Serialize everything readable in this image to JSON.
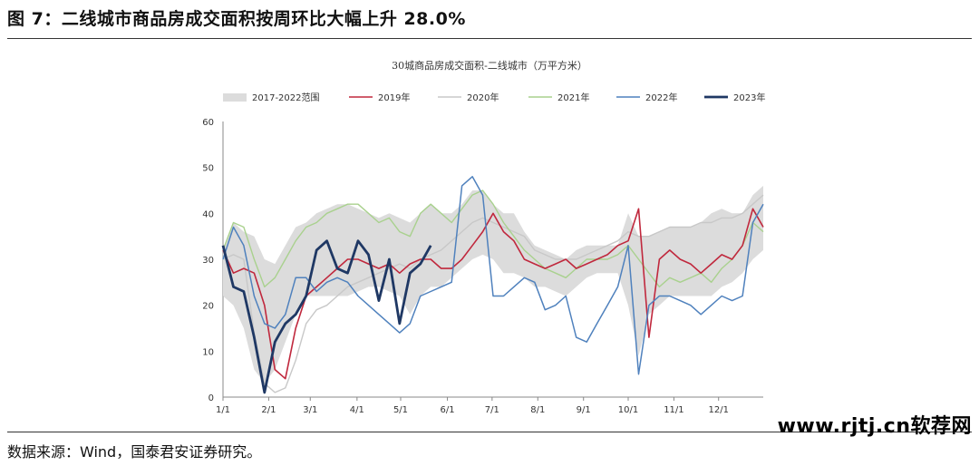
{
  "figure": {
    "title": "图 7：二线城市商品房成交面积按周环比大幅上升 28.0%",
    "source": "数据来源：Wind，国泰君安证券研究。",
    "watermark": "www.rjtj.cn软荐网"
  },
  "colors": {
    "range": "#dcdcdc",
    "s2019": "#c0283d",
    "s2020": "#c8c8c8",
    "s2021": "#a9d18e",
    "s2022": "#4f81bd",
    "s2023": "#1f3864"
  },
  "chart_data": {
    "type": "line",
    "title": "30城商品房成交面积-二线城市（万平方米）",
    "xlabel": "",
    "ylabel": "",
    "ylim": [
      0,
      60
    ],
    "yticks": [
      0,
      10,
      20,
      30,
      40,
      50,
      60
    ],
    "xlim": [
      0,
      52
    ],
    "xticks": [
      {
        "label": "1/1",
        "week": 0
      },
      {
        "label": "2/1",
        "week": 4.4
      },
      {
        "label": "3/1",
        "week": 8.4
      },
      {
        "label": "4/1",
        "week": 12.9
      },
      {
        "label": "5/1",
        "week": 17.1
      },
      {
        "label": "6/1",
        "week": 21.6
      },
      {
        "label": "7/1",
        "week": 25.9
      },
      {
        "label": "8/1",
        "week": 30.3
      },
      {
        "label": "9/1",
        "week": 34.7
      },
      {
        "label": "10/1",
        "week": 39.0
      },
      {
        "label": "11/1",
        "week": 43.4
      },
      {
        "label": "12/1",
        "week": 47.7
      }
    ],
    "legend": [
      "2017-2022范围",
      "2019年",
      "2020年",
      "2021年",
      "2022年",
      "2023年"
    ],
    "range_band": {
      "name": "2017-2022范围",
      "x": [
        0,
        1,
        2,
        3,
        4,
        5,
        6,
        7,
        8,
        9,
        10,
        11,
        12,
        13,
        14,
        15,
        16,
        17,
        18,
        19,
        20,
        21,
        22,
        23,
        24,
        25,
        26,
        27,
        28,
        29,
        30,
        31,
        32,
        33,
        34,
        35,
        36,
        37,
        38,
        39,
        40,
        41,
        42,
        43,
        44,
        45,
        46,
        47,
        48,
        49,
        50,
        51,
        52
      ],
      "upper": [
        32,
        38,
        36,
        35,
        30,
        29,
        33,
        37,
        38,
        40,
        41,
        42,
        42,
        41,
        40,
        39,
        40,
        39,
        38,
        40,
        42,
        40,
        40,
        42,
        45,
        45,
        42,
        40,
        40,
        36,
        33,
        32,
        31,
        30,
        32,
        33,
        33,
        33,
        33,
        40,
        35,
        35,
        36,
        37,
        37,
        37,
        38,
        40,
        41,
        40,
        40,
        44,
        46
      ],
      "lower": [
        22,
        20,
        15,
        6,
        3,
        6,
        12,
        18,
        22,
        22,
        22,
        22,
        22,
        23,
        24,
        24,
        23,
        22,
        18,
        22,
        24,
        24,
        26,
        28,
        30,
        31,
        30,
        27,
        27,
        26,
        24,
        24,
        23,
        22,
        24,
        26,
        27,
        27,
        27,
        20,
        9,
        18,
        20,
        22,
        22,
        22,
        22,
        22,
        24,
        25,
        27,
        30,
        32
      ]
    },
    "series": [
      {
        "name": "2019年",
        "x": [
          0,
          1,
          2,
          3,
          4,
          5,
          6,
          7,
          8,
          9,
          10,
          11,
          12,
          13,
          14,
          15,
          16,
          17,
          18,
          19,
          20,
          21,
          22,
          23,
          24,
          25,
          26,
          27,
          28,
          29,
          30,
          31,
          32,
          33,
          34,
          35,
          36,
          37,
          38,
          39,
          40,
          41,
          42,
          43,
          44,
          45,
          46,
          47,
          48,
          49,
          50,
          51,
          52
        ],
        "values": [
          32,
          27,
          28,
          27,
          20,
          6,
          4,
          15,
          22,
          24,
          26,
          28,
          30,
          30,
          29,
          28,
          29,
          27,
          29,
          30,
          30,
          28,
          28,
          30,
          33,
          36,
          40,
          36,
          34,
          30,
          29,
          28,
          29,
          30,
          28,
          29,
          30,
          31,
          33,
          34,
          41,
          13,
          30,
          32,
          30,
          29,
          27,
          29,
          31,
          30,
          33,
          41,
          37
        ]
      },
      {
        "name": "2020年",
        "x": [
          0,
          1,
          2,
          3,
          4,
          5,
          6,
          7,
          8,
          9,
          10,
          11,
          12,
          13,
          14,
          15,
          16,
          17,
          18,
          19,
          20,
          21,
          22,
          23,
          24,
          25,
          26,
          27,
          28,
          29,
          30,
          31,
          32,
          33,
          34,
          35,
          36,
          37,
          38,
          39,
          40,
          41,
          42,
          43,
          44,
          45,
          46,
          47,
          48,
          49,
          50,
          51,
          52
        ],
        "values": [
          30,
          31,
          30,
          14,
          3,
          1,
          2,
          8,
          16,
          19,
          20,
          22,
          24,
          25,
          26,
          27,
          28,
          29,
          28,
          30,
          31,
          32,
          34,
          36,
          38,
          39,
          38,
          37,
          36,
          35,
          32,
          31,
          30,
          30,
          30,
          31,
          32,
          33,
          34,
          36,
          35,
          35,
          36,
          37,
          37,
          37,
          38,
          38,
          39,
          39,
          40,
          42,
          44
        ]
      },
      {
        "name": "2021年",
        "x": [
          0,
          1,
          2,
          3,
          4,
          5,
          6,
          7,
          8,
          9,
          10,
          11,
          12,
          13,
          14,
          15,
          16,
          17,
          18,
          19,
          20,
          21,
          22,
          23,
          24,
          25,
          26,
          27,
          28,
          29,
          30,
          31,
          32,
          33,
          34,
          35,
          36,
          37,
          38,
          39,
          40,
          41,
          42,
          43,
          44,
          45,
          46,
          47,
          48,
          49,
          50,
          51,
          52
        ],
        "values": [
          32,
          38,
          37,
          30,
          24,
          26,
          30,
          34,
          37,
          38,
          40,
          41,
          42,
          42,
          40,
          38,
          39,
          36,
          35,
          40,
          42,
          40,
          38,
          41,
          44,
          45,
          42,
          38,
          35,
          32,
          30,
          28,
          27,
          26,
          28,
          30,
          30,
          30,
          31,
          33,
          30,
          27,
          24,
          26,
          25,
          26,
          27,
          25,
          28,
          30,
          33,
          38,
          36
        ]
      },
      {
        "name": "2022年",
        "x": [
          0,
          1,
          2,
          3,
          4,
          5,
          6,
          7,
          8,
          9,
          10,
          11,
          12,
          13,
          14,
          15,
          16,
          17,
          18,
          19,
          20,
          21,
          22,
          23,
          24,
          25,
          26,
          27,
          28,
          29,
          30,
          31,
          32,
          33,
          34,
          35,
          36,
          37,
          38,
          39,
          40,
          41,
          42,
          43,
          44,
          45,
          46,
          47,
          48,
          49,
          50,
          51,
          52
        ],
        "values": [
          30,
          37,
          33,
          22,
          16,
          15,
          18,
          26,
          26,
          23,
          25,
          26,
          25,
          22,
          20,
          18,
          16,
          14,
          16,
          22,
          23,
          24,
          25,
          46,
          48,
          44,
          22,
          22,
          24,
          26,
          25,
          19,
          20,
          22,
          13,
          12,
          16,
          20,
          24,
          33,
          5,
          20,
          22,
          22,
          21,
          20,
          18,
          20,
          22,
          21,
          22,
          38,
          42
        ]
      },
      {
        "name": "2023年",
        "x": [
          0,
          1,
          2,
          3,
          4,
          5,
          6,
          7,
          8,
          9,
          10,
          11,
          12,
          13,
          14,
          15,
          16,
          17,
          18,
          19,
          20
        ],
        "values": [
          33,
          24,
          23,
          13,
          1,
          12,
          16,
          18,
          22,
          32,
          34,
          28,
          27,
          34,
          31,
          21,
          30,
          16,
          27,
          29,
          33
        ]
      }
    ]
  }
}
